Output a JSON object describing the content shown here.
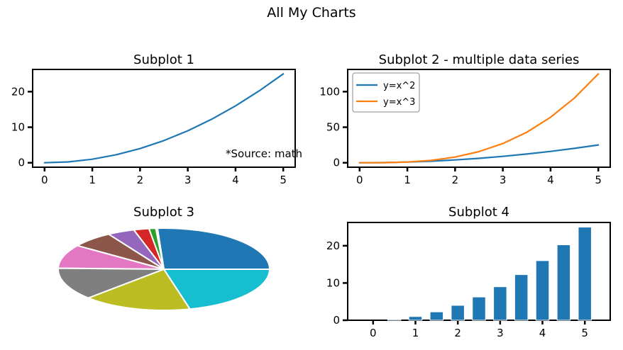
{
  "figure": {
    "title": "All My Charts"
  },
  "colors": {
    "blue": "#1f77b4",
    "orange": "#ff7f0e",
    "green": "#2ca02c",
    "red": "#d62728",
    "purple": "#9467bd",
    "brown": "#8c564b",
    "pink": "#e377c2",
    "gray": "#7f7f7f",
    "olive": "#bcbd22",
    "cyan": "#17becf"
  },
  "chart_data": [
    {
      "id": "subplot1",
      "type": "line",
      "title": "Subplot 1",
      "annotation": "*Source: math",
      "x": [
        0,
        0.5,
        1,
        1.5,
        2,
        2.5,
        3,
        3.5,
        4,
        4.5,
        5
      ],
      "series": [
        {
          "values": [
            0,
            0.25,
            1,
            2.25,
            4,
            6.25,
            9,
            12.25,
            16,
            20.25,
            25
          ],
          "color": "#1f77b4"
        }
      ],
      "xlim": [
        -0.25,
        5.25
      ],
      "ylim": [
        -1.25,
        26.25
      ],
      "xticks": [
        0,
        1,
        2,
        3,
        4,
        5
      ],
      "yticks": [
        0,
        10,
        20
      ],
      "grid": false
    },
    {
      "id": "subplot2",
      "type": "line",
      "title": "Subplot 2 - multiple data series",
      "x": [
        0,
        0.5,
        1,
        1.5,
        2,
        2.5,
        3,
        3.5,
        4,
        4.5,
        5
      ],
      "series": [
        {
          "name": "y=x^2",
          "values": [
            0,
            0.25,
            1,
            2.25,
            4,
            6.25,
            9,
            12.25,
            16,
            20.25,
            25
          ],
          "color": "#1f77b4"
        },
        {
          "name": "y=x^3",
          "values": [
            0,
            0.125,
            1,
            3.375,
            8,
            15.625,
            27,
            42.875,
            64,
            91.125,
            125
          ],
          "color": "#ff7f0e"
        }
      ],
      "xlim": [
        -0.25,
        5.25
      ],
      "ylim": [
        -6.25,
        131.25
      ],
      "xticks": [
        0,
        1,
        2,
        3,
        4,
        5
      ],
      "yticks": [
        0,
        50,
        100
      ],
      "legend": "upper-left",
      "grid": false
    },
    {
      "id": "subplot3",
      "type": "pie",
      "title": "Subplot 3",
      "values": [
        25,
        0.25,
        1,
        2.25,
        4,
        6.25,
        9,
        12.25,
        16,
        20.25
      ],
      "colors": [
        "#1f77b4",
        "#ff7f0e",
        "#2ca02c",
        "#d62728",
        "#9467bd",
        "#8c564b",
        "#e377c2",
        "#7f7f7f",
        "#bcbd22",
        "#17becf"
      ]
    },
    {
      "id": "subplot4",
      "type": "bar",
      "title": "Subplot 4",
      "x": [
        0,
        0.5,
        1,
        1.5,
        2,
        2.5,
        3,
        3.5,
        4,
        4.5,
        5
      ],
      "values": [
        0,
        0.25,
        1,
        2.25,
        4,
        6.25,
        9,
        12.25,
        16,
        20.25,
        25
      ],
      "color": "#1f77b4",
      "xlim": [
        -0.6,
        5.6
      ],
      "ylim": [
        0,
        26.25
      ],
      "xticks": [
        0,
        1,
        2,
        3,
        4,
        5
      ],
      "yticks": [
        0,
        10,
        20
      ],
      "grid": false
    }
  ]
}
